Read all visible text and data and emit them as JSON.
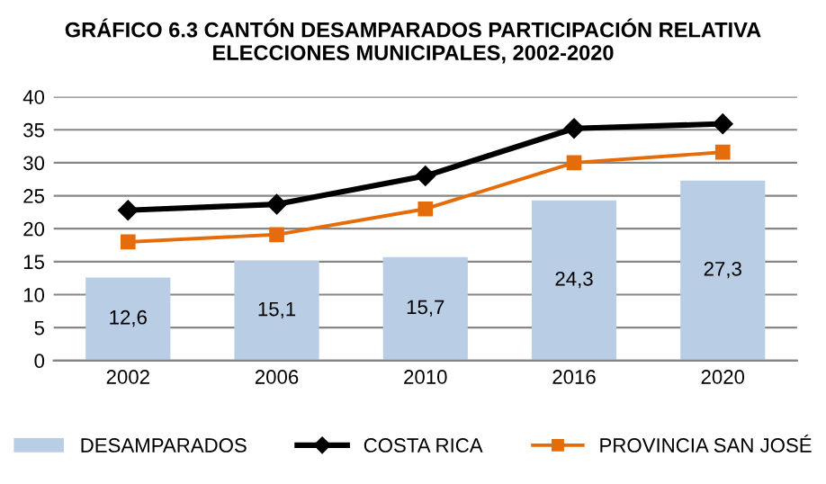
{
  "chart_data": {
    "type": "bar",
    "title": "GRÁFICO 6.3 CANTÓN DESAMPARADOS PARTICIPACIÓN RELATIVA\nELECCIONES MUNICIPALES, 2002-2020",
    "categories": [
      "2002",
      "2006",
      "2010",
      "2016",
      "2020"
    ],
    "series": [
      {
        "name": "DESAMPARADOS",
        "color": "#b9cde5",
        "values": [
          12.6,
          15.1,
          15.7,
          24.3,
          27.3
        ],
        "value_labels": [
          "12,6",
          "15,1",
          "15,7",
          "24,3",
          "27,3"
        ]
      },
      {
        "name": "COSTA RICA",
        "type": "line",
        "color": "#000000",
        "marker": "diamond",
        "values": [
          22.8,
          23.7,
          28.0,
          35.2,
          35.9
        ]
      },
      {
        "name": "PROVINCIA SAN JOSÉ",
        "type": "line",
        "color": "#e46c0a",
        "marker": "square",
        "values": [
          18.0,
          19.1,
          23.0,
          30.0,
          31.6
        ]
      }
    ],
    "ylim": [
      0,
      40
    ],
    "yticks": [
      0,
      5,
      10,
      15,
      20,
      25,
      30,
      35,
      40
    ],
    "grid": "y",
    "legend": "bottom"
  }
}
